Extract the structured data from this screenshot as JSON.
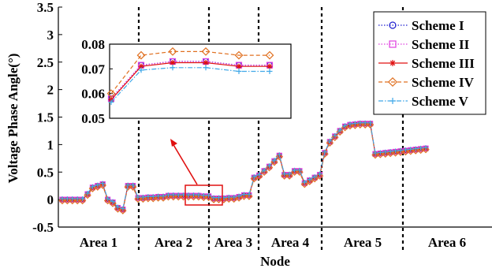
{
  "chart_data": {
    "type": "line",
    "xlabel": "Node",
    "ylabel": "Voltage Phase Angle(°)",
    "ylim": [
      -0.5,
      3.5
    ],
    "yticks": [
      "-0.5",
      "0",
      "0.5",
      "1",
      "1.5",
      "2",
      "2.5",
      "3",
      "3.5"
    ],
    "grid": false,
    "legend_position": "top-right",
    "areas": [
      "Area 1",
      "Area 2",
      "Area 3",
      "Area 4",
      "Area 5",
      "Area 6"
    ],
    "node_count": 73,
    "series": [
      {
        "name": "Scheme I",
        "color": "#1f1fcf",
        "marker": "circle",
        "dash": "dotted"
      },
      {
        "name": "Scheme II",
        "color": "#e040e0",
        "marker": "square",
        "dash": "dotted"
      },
      {
        "name": "Scheme III",
        "color": "#e01010",
        "marker": "asterisk",
        "dash": "solid"
      },
      {
        "name": "Scheme IV",
        "color": "#e07020",
        "marker": "diamond",
        "dash": "dashed"
      },
      {
        "name": "Scheme V",
        "color": "#40a8e8",
        "marker": "plus",
        "dash": "dashdot"
      }
    ],
    "main_values": [
      0,
      0,
      0,
      0,
      0,
      0.1,
      0.22,
      0.25,
      0.28,
      0,
      -0.05,
      -0.15,
      -0.18,
      0.25,
      0.25,
      0.03,
      0.03,
      0.04,
      0.04,
      0.05,
      0.05,
      0.07,
      0.07,
      0.07,
      0.07,
      0.07,
      0.07,
      0.07,
      0.06,
      0.06,
      0.02,
      0.02,
      0.02,
      0.03,
      0.03,
      0.05,
      0.08,
      0.08,
      0.4,
      0.44,
      0.52,
      0.6,
      0.7,
      0.8,
      0.45,
      0.45,
      0.52,
      0.52,
      0.3,
      0.35,
      0.4,
      0.45,
      0.85,
      1.05,
      1.15,
      1.25,
      1.33,
      1.36,
      1.37,
      1.38,
      1.38,
      1.38,
      0.83,
      0.84,
      0.85,
      0.86,
      0.87,
      0.88,
      0.89,
      0.9,
      0.91,
      0.92,
      0.93
    ],
    "inset": {
      "ylim": [
        0.05,
        0.08
      ],
      "yticks": [
        "0.05",
        "0.06",
        "0.07",
        "0.08"
      ],
      "series_values": {
        "Scheme I": [
          0.058,
          0.0715,
          0.073,
          0.073,
          0.0715,
          0.0715
        ],
        "Scheme II": [
          0.058,
          0.0715,
          0.073,
          0.073,
          0.0715,
          0.0715
        ],
        "Scheme III": [
          0.0575,
          0.071,
          0.0725,
          0.0725,
          0.071,
          0.071
        ],
        "Scheme IV": [
          0.06,
          0.0755,
          0.077,
          0.077,
          0.0755,
          0.0755
        ],
        "Scheme V": [
          0.0565,
          0.0695,
          0.0705,
          0.0705,
          0.069,
          0.069
        ]
      }
    }
  }
}
